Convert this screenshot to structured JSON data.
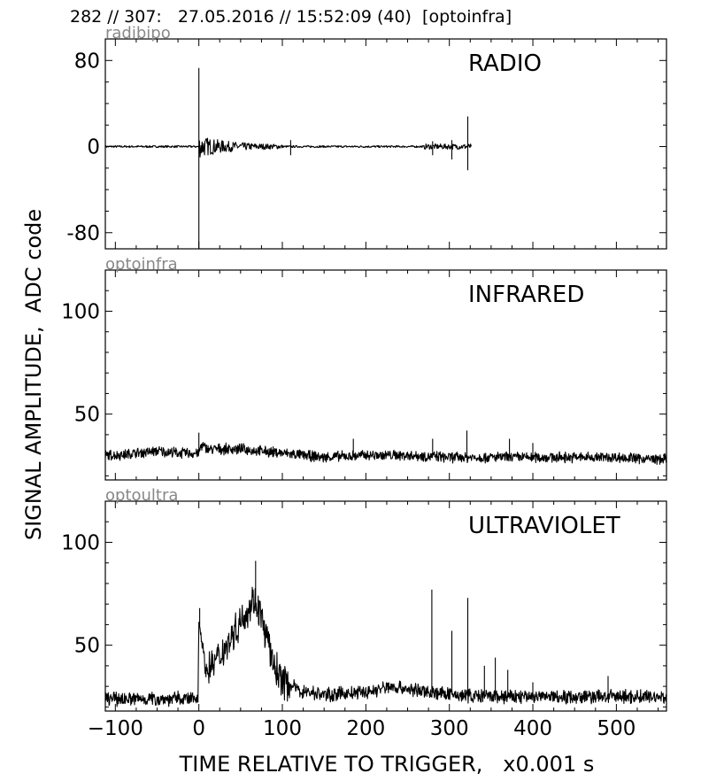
{
  "figure": {
    "title": "282 // 307:   27.05.2016 // 15:52:09 (40)  [optoinfra]",
    "ylabel": "SIGNAL AMPLITUDE,  ADC code",
    "xlabel": "TIME RELATIVE TO TRIGGER,   x0.001 s"
  },
  "colors": {
    "trace": "#000000",
    "channel_label": "#888888",
    "axis": "#000000"
  },
  "chart_data": [
    {
      "type": "line",
      "channel": "radibipo",
      "title": "RADIO",
      "xlim": [
        -112,
        560
      ],
      "ylim": [
        -95,
        100
      ],
      "y_ticks": [
        -80,
        0,
        80
      ],
      "x_ticks": [
        -100,
        0,
        100,
        200,
        300,
        400,
        500
      ],
      "x_tick_labels_shown": false,
      "grid": false,
      "series": [
        {
          "points": [
            [
              -112,
              0
            ],
            [
              0,
              0
            ],
            [
              0,
              73
            ],
            [
              0,
              -95
            ],
            [
              2,
              15
            ],
            [
              5,
              -12
            ],
            [
              10,
              11
            ],
            [
              20,
              -10
            ],
            [
              30,
              8
            ],
            [
              45,
              -6
            ],
            [
              60,
              6
            ],
            [
              70,
              -4
            ],
            [
              80,
              3
            ],
            [
              95,
              2
            ],
            [
              110,
              5
            ],
            [
              150,
              1
            ],
            [
              250,
              0
            ],
            [
              275,
              3
            ],
            [
              300,
              -7
            ],
            [
              320,
              28
            ],
            [
              322,
              -22
            ],
            [
              325,
              3
            ],
            [
              327,
              0
            ]
          ],
          "events": [
            {
              "x": 0,
              "ymax": 73,
              "ymin": -95
            },
            {
              "x": 110,
              "ymax": 6,
              "ymin": -8
            },
            {
              "x": 280,
              "ymax": 5,
              "ymin": -8
            },
            {
              "x": 303,
              "ymax": 6,
              "ymin": -12
            },
            {
              "x": 322,
              "ymax": 28,
              "ymin": -22
            }
          ],
          "end_x": 327
        }
      ]
    },
    {
      "type": "line",
      "channel": "optoinfra",
      "title": "INFRARED",
      "xlim": [
        -112,
        560
      ],
      "ylim": [
        18,
        120
      ],
      "y_ticks": [
        50,
        100
      ],
      "x_ticks": [
        -100,
        0,
        100,
        200,
        300,
        400,
        500
      ],
      "x_tick_labels_shown": false,
      "grid": false,
      "series": [
        {
          "points": [
            [
              -112,
              30
            ],
            [
              -100,
              30
            ],
            [
              -50,
              32
            ],
            [
              -20,
              31
            ],
            [
              0,
              31
            ],
            [
              3,
              35
            ],
            [
              10,
              33
            ],
            [
              50,
              33
            ],
            [
              100,
              31
            ],
            [
              150,
              29
            ],
            [
              200,
              30
            ],
            [
              250,
              30
            ],
            [
              300,
              29
            ],
            [
              350,
              29
            ],
            [
              400,
              29
            ],
            [
              450,
              29
            ],
            [
              500,
              29
            ],
            [
              550,
              28
            ]
          ],
          "noise_amplitude": 3,
          "spikes": [
            [
              0,
              41
            ],
            [
              185,
              38
            ],
            [
              280,
              38
            ],
            [
              321,
              42
            ],
            [
              372,
              38
            ],
            [
              400,
              36
            ]
          ]
        }
      ]
    },
    {
      "type": "line",
      "channel": "optoultra",
      "title": "ULTRAVIOLET",
      "xlim": [
        -112,
        560
      ],
      "ylim": [
        18,
        120
      ],
      "y_ticks": [
        50,
        100
      ],
      "x_ticks": [
        -100,
        0,
        100,
        200,
        300,
        400,
        500
      ],
      "x_tick_labels": [
        "−100",
        "0",
        "100",
        "200",
        "300",
        "400",
        "500"
      ],
      "grid": false,
      "series": [
        {
          "points": [
            [
              -112,
              24
            ],
            [
              -1,
              24
            ],
            [
              0,
              62
            ],
            [
              3,
              55
            ],
            [
              8,
              38
            ],
            [
              15,
              40
            ],
            [
              25,
              45
            ],
            [
              40,
              55
            ],
            [
              55,
              65
            ],
            [
              65,
              72
            ],
            [
              72,
              68
            ],
            [
              80,
              55
            ],
            [
              90,
              40
            ],
            [
              100,
              33
            ],
            [
              120,
              28
            ],
            [
              150,
              26
            ],
            [
              200,
              27
            ],
            [
              230,
              30
            ],
            [
              260,
              28
            ],
            [
              300,
              26
            ],
            [
              350,
              25
            ],
            [
              400,
              25
            ],
            [
              450,
              25
            ],
            [
              500,
              25
            ],
            [
              550,
              25
            ]
          ],
          "noise_amplitude": 4,
          "spikes": [
            [
              1,
              68
            ],
            [
              68,
              91
            ],
            [
              279,
              77
            ],
            [
              303,
              57
            ],
            [
              322,
              73
            ],
            [
              342,
              40
            ],
            [
              355,
              44
            ],
            [
              370,
              38
            ],
            [
              400,
              32
            ],
            [
              490,
              35
            ]
          ]
        }
      ]
    }
  ]
}
